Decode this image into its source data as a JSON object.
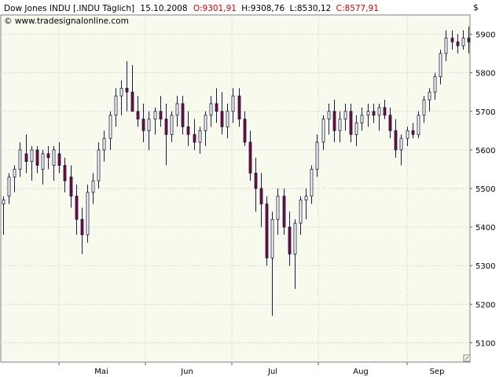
{
  "header": {
    "instrument": "Dow Jones INDU [.INDU  Täglich]",
    "date": "15.10.2008",
    "open": "O:9301,91",
    "high": "H:9308,76",
    "low": "L:8530,12",
    "close": "C:8577,91",
    "copyright": "© www.tradesignalonline.com",
    "currency": "$"
  },
  "colors": {
    "plot_bg": "#f8faee",
    "grid": "#c4c4c4",
    "bull": "#ffffff",
    "bear": "#7a0a3c",
    "wick": "#1a1a4a",
    "ohlc_highlight": "#e00000"
  },
  "chart_data": {
    "type": "candlestick",
    "ylim": [
      5050,
      5950
    ],
    "yticks": [
      5100,
      5200,
      5300,
      5400,
      5500,
      5600,
      5700,
      5800,
      5900
    ],
    "ytick_labels": [
      "5100",
      "5200",
      "5300",
      "5400",
      "5500",
      "5600",
      "5700",
      "5800",
      "5900"
    ],
    "xtick_labels": [
      "Mai",
      "Jun",
      "Jul",
      "Aug",
      "Sep"
    ],
    "grid": true,
    "candles": [
      [
        5460,
        5480,
        5380,
        5470
      ],
      [
        5480,
        5540,
        5460,
        5530
      ],
      [
        5530,
        5560,
        5490,
        5550
      ],
      [
        5550,
        5620,
        5530,
        5600
      ],
      [
        5590,
        5640,
        5540,
        5570
      ],
      [
        5570,
        5610,
        5520,
        5600
      ],
      [
        5600,
        5610,
        5540,
        5560
      ],
      [
        5550,
        5600,
        5510,
        5590
      ],
      [
        5590,
        5610,
        5550,
        5580
      ],
      [
        5560,
        5610,
        5520,
        5600
      ],
      [
        5590,
        5620,
        5540,
        5560
      ],
      [
        5560,
        5580,
        5490,
        5520
      ],
      [
        5530,
        5560,
        5450,
        5480
      ],
      [
        5480,
        5510,
        5380,
        5420
      ],
      [
        5420,
        5450,
        5330,
        5380
      ],
      [
        5380,
        5510,
        5360,
        5490
      ],
      [
        5490,
        5540,
        5460,
        5520
      ],
      [
        5520,
        5620,
        5500,
        5600
      ],
      [
        5600,
        5650,
        5570,
        5630
      ],
      [
        5630,
        5700,
        5600,
        5690
      ],
      [
        5690,
        5760,
        5660,
        5740
      ],
      [
        5740,
        5780,
        5690,
        5760
      ],
      [
        5760,
        5830,
        5700,
        5750
      ],
      [
        5750,
        5820,
        5700,
        5700
      ],
      [
        5700,
        5740,
        5660,
        5680
      ],
      [
        5680,
        5720,
        5620,
        5650
      ],
      [
        5650,
        5700,
        5600,
        5680
      ],
      [
        5680,
        5710,
        5640,
        5700
      ],
      [
        5700,
        5740,
        5660,
        5680
      ],
      [
        5680,
        5720,
        5560,
        5640
      ],
      [
        5640,
        5700,
        5620,
        5690
      ],
      [
        5690,
        5740,
        5660,
        5720
      ],
      [
        5720,
        5740,
        5640,
        5660
      ],
      [
        5660,
        5700,
        5610,
        5640
      ],
      [
        5640,
        5680,
        5600,
        5620
      ],
      [
        5620,
        5660,
        5590,
        5650
      ],
      [
        5650,
        5700,
        5610,
        5690
      ],
      [
        5690,
        5740,
        5660,
        5720
      ],
      [
        5720,
        5760,
        5670,
        5700
      ],
      [
        5700,
        5750,
        5640,
        5660
      ],
      [
        5660,
        5720,
        5630,
        5700
      ],
      [
        5700,
        5760,
        5670,
        5740
      ],
      [
        5740,
        5760,
        5660,
        5680
      ],
      [
        5680,
        5700,
        5610,
        5620
      ],
      [
        5620,
        5650,
        5520,
        5540
      ],
      [
        5540,
        5580,
        5440,
        5500
      ],
      [
        5500,
        5540,
        5400,
        5460
      ],
      [
        5460,
        5480,
        5300,
        5320
      ],
      [
        5320,
        5440,
        5170,
        5420
      ],
      [
        5420,
        5500,
        5380,
        5480
      ],
      [
        5480,
        5500,
        5380,
        5400
      ],
      [
        5400,
        5440,
        5300,
        5330
      ],
      [
        5330,
        5420,
        5240,
        5410
      ],
      [
        5410,
        5480,
        5380,
        5470
      ],
      [
        5470,
        5500,
        5420,
        5480
      ],
      [
        5480,
        5560,
        5460,
        5550
      ],
      [
        5550,
        5640,
        5530,
        5620
      ],
      [
        5620,
        5690,
        5600,
        5680
      ],
      [
        5680,
        5720,
        5640,
        5700
      ],
      [
        5700,
        5730,
        5620,
        5650
      ],
      [
        5650,
        5700,
        5620,
        5680
      ],
      [
        5680,
        5720,
        5650,
        5700
      ],
      [
        5700,
        5720,
        5620,
        5640
      ],
      [
        5640,
        5690,
        5610,
        5670
      ],
      [
        5670,
        5710,
        5650,
        5690
      ],
      [
        5690,
        5720,
        5660,
        5700
      ],
      [
        5700,
        5720,
        5670,
        5690
      ],
      [
        5690,
        5720,
        5650,
        5710
      ],
      [
        5710,
        5730,
        5680,
        5690
      ],
      [
        5690,
        5710,
        5630,
        5650
      ],
      [
        5650,
        5680,
        5580,
        5600
      ],
      [
        5600,
        5640,
        5560,
        5630
      ],
      [
        5630,
        5660,
        5610,
        5650
      ],
      [
        5650,
        5670,
        5630,
        5640
      ],
      [
        5640,
        5700,
        5630,
        5690
      ],
      [
        5690,
        5740,
        5670,
        5730
      ],
      [
        5730,
        5760,
        5700,
        5750
      ],
      [
        5750,
        5800,
        5730,
        5790
      ],
      [
        5790,
        5860,
        5770,
        5850
      ],
      [
        5850,
        5910,
        5830,
        5890
      ],
      [
        5890,
        5910,
        5860,
        5880
      ],
      [
        5880,
        5900,
        5850,
        5870
      ],
      [
        5870,
        5910,
        5860,
        5890
      ],
      [
        5890,
        5920,
        5850,
        5880
      ]
    ]
  }
}
